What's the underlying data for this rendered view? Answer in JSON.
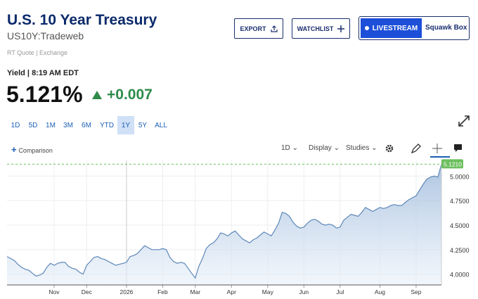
{
  "header": {
    "title": "U.S. 10 Year Treasury",
    "symbol": "US10Y:Tradeweb",
    "quote_source": "RT Quote | Exchange"
  },
  "buttons": {
    "export": "EXPORT",
    "watchlist": "WATCHLIST",
    "livestream": "LIVESTREAM",
    "squawk": "Squawk Box"
  },
  "quote": {
    "label": "Yield | 8:19 AM EDT",
    "price": "5.121%",
    "change": "+0.007"
  },
  "ranges": [
    "1D",
    "5D",
    "1M",
    "3M",
    "6M",
    "YTD",
    "1Y",
    "5Y",
    "ALL"
  ],
  "active_range": 6,
  "toolbar": {
    "comparison": "Comparison",
    "interval": "1D",
    "display": "Display",
    "studies": "Studies"
  },
  "chart_data": {
    "type": "area",
    "color": "#5d87b8",
    "grid": true,
    "categories": [
      null,
      null,
      null,
      null,
      null,
      null,
      null,
      null,
      null,
      null,
      null,
      null,
      null,
      "Nov",
      null,
      null,
      null,
      null,
      null,
      null,
      null,
      null,
      "Dec",
      null,
      null,
      null,
      null,
      null,
      null,
      null,
      null,
      null,
      null,
      "2026",
      null,
      null,
      null,
      null,
      null,
      null,
      null,
      null,
      null,
      "Feb",
      null,
      null,
      null,
      null,
      null,
      null,
      null,
      null,
      "Mar",
      null,
      null,
      null,
      null,
      null,
      null,
      null,
      null,
      null,
      "Apr",
      null,
      null,
      null,
      null,
      null,
      null,
      null,
      null,
      null,
      "May",
      null,
      null,
      null,
      null,
      null,
      null,
      null,
      null,
      null,
      "Jun",
      null,
      null,
      null,
      null,
      null,
      null,
      null,
      null,
      null,
      "Jul",
      null,
      null,
      null,
      null,
      null,
      null,
      null,
      null,
      null,
      null,
      "Aug",
      null,
      null,
      null,
      null,
      null,
      null,
      null,
      null,
      null,
      "Sep",
      null,
      null,
      null,
      null,
      null,
      null,
      null
    ],
    "values": [
      4.18,
      4.16,
      4.14,
      4.1,
      4.07,
      4.05,
      4.04,
      4.01,
      3.98,
      3.99,
      4.01,
      4.07,
      4.11,
      4.09,
      4.11,
      4.12,
      4.12,
      4.08,
      4.06,
      4.05,
      4.02,
      4.0,
      4.09,
      4.13,
      4.17,
      4.18,
      4.16,
      4.15,
      4.13,
      4.11,
      4.09,
      4.1,
      4.11,
      4.12,
      4.18,
      4.19,
      4.21,
      4.25,
      4.29,
      4.27,
      4.25,
      4.25,
      4.25,
      4.26,
      4.25,
      4.17,
      4.13,
      4.11,
      4.12,
      4.11,
      4.06,
      4.01,
      3.96,
      4.08,
      4.16,
      4.26,
      4.3,
      4.32,
      4.36,
      4.42,
      4.41,
      4.39,
      4.42,
      4.44,
      4.4,
      4.36,
      4.34,
      4.32,
      4.35,
      4.37,
      4.4,
      4.43,
      4.41,
      4.39,
      4.45,
      4.52,
      4.63,
      4.62,
      4.59,
      4.53,
      4.49,
      4.47,
      4.48,
      4.52,
      4.55,
      4.56,
      4.54,
      4.51,
      4.5,
      4.51,
      4.5,
      4.47,
      4.48,
      4.55,
      4.58,
      4.61,
      4.6,
      4.59,
      4.63,
      4.68,
      4.66,
      4.64,
      4.66,
      4.68,
      4.67,
      4.68,
      4.7,
      4.71,
      4.7,
      4.7,
      4.73,
      4.76,
      4.78,
      4.8,
      4.86,
      4.92,
      4.97,
      4.99,
      5.0,
      4.99,
      5.121
    ],
    "ylim": [
      3.89,
      5.16
    ],
    "yticks": [
      {
        "value": 4.0,
        "label": "4.0000"
      },
      {
        "value": 4.25,
        "label": "4.2500"
      },
      {
        "value": 4.5,
        "label": "4.5000"
      },
      {
        "value": 4.75,
        "label": "4.7500"
      },
      {
        "value": 5.0,
        "label": "5.0000"
      }
    ],
    "last_price": {
      "value": 5.121,
      "label": "5.1210",
      "color": "#6cbf5e"
    }
  }
}
